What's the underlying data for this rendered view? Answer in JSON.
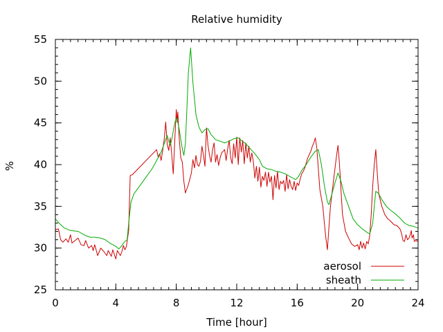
{
  "chart_data": {
    "type": "line",
    "title": "Relative humidity",
    "xlabel": "Time [hour]",
    "ylabel": "%",
    "xlim": [
      0,
      24
    ],
    "ylim": [
      25,
      55
    ],
    "xticks": [
      0,
      4,
      8,
      12,
      16,
      20,
      24
    ],
    "yticks": [
      25,
      30,
      35,
      40,
      45,
      50,
      55
    ],
    "grid": false,
    "legend_position": "bottom-right",
    "series": [
      {
        "name": "aerosol",
        "color": "#cc0000",
        "points": [
          [
            0,
            32.2
          ],
          [
            0.2,
            32.3
          ],
          [
            0.35,
            31.0
          ],
          [
            0.5,
            30.7
          ],
          [
            0.7,
            31.1
          ],
          [
            0.85,
            30.7
          ],
          [
            1.0,
            31.6
          ],
          [
            1.1,
            30.6
          ],
          [
            1.3,
            30.9
          ],
          [
            1.5,
            31.2
          ],
          [
            1.7,
            30.4
          ],
          [
            1.9,
            30.3
          ],
          [
            2.0,
            30.9
          ],
          [
            2.2,
            30.0
          ],
          [
            2.4,
            30.3
          ],
          [
            2.5,
            29.7
          ],
          [
            2.6,
            30.4
          ],
          [
            2.8,
            29.1
          ],
          [
            3.0,
            30.0
          ],
          [
            3.2,
            29.6
          ],
          [
            3.4,
            29.1
          ],
          [
            3.5,
            29.7
          ],
          [
            3.7,
            29.0
          ],
          [
            3.8,
            29.8
          ],
          [
            4.0,
            28.7
          ],
          [
            4.1,
            29.7
          ],
          [
            4.3,
            29.1
          ],
          [
            4.4,
            29.6
          ],
          [
            4.5,
            30.3
          ],
          [
            4.6,
            29.8
          ],
          [
            4.7,
            30.2
          ],
          [
            4.85,
            32.1
          ],
          [
            4.95,
            38.7
          ],
          [
            5.1,
            38.8
          ],
          [
            6.7,
            41.8
          ],
          [
            6.8,
            40.9
          ],
          [
            6.9,
            41.3
          ],
          [
            7.0,
            40.5
          ],
          [
            7.1,
            41.7
          ],
          [
            7.2,
            43.0
          ],
          [
            7.3,
            45.1
          ],
          [
            7.4,
            42.4
          ],
          [
            7.5,
            41.7
          ],
          [
            7.6,
            43.2
          ],
          [
            7.7,
            41.2
          ],
          [
            7.8,
            38.9
          ],
          [
            7.9,
            42.9
          ],
          [
            8.0,
            46.6
          ],
          [
            8.05,
            45.1
          ],
          [
            8.1,
            46.3
          ],
          [
            8.2,
            43.0
          ],
          [
            8.3,
            40.8
          ],
          [
            8.4,
            40.3
          ],
          [
            8.5,
            38.0
          ],
          [
            8.6,
            36.6
          ],
          [
            8.8,
            37.6
          ],
          [
            9.0,
            39.0
          ],
          [
            9.1,
            40.6
          ],
          [
            9.2,
            39.6
          ],
          [
            9.3,
            41.1
          ],
          [
            9.4,
            40.0
          ],
          [
            9.5,
            39.8
          ],
          [
            9.6,
            40.4
          ],
          [
            9.7,
            42.2
          ],
          [
            9.8,
            41.1
          ],
          [
            9.9,
            39.8
          ],
          [
            10.0,
            44.4
          ],
          [
            10.1,
            42.3
          ],
          [
            10.2,
            41.1
          ],
          [
            10.3,
            40.3
          ],
          [
            10.4,
            41.8
          ],
          [
            10.5,
            42.6
          ],
          [
            10.6,
            40.3
          ],
          [
            10.7,
            41.2
          ],
          [
            10.8,
            39.9
          ],
          [
            10.9,
            40.8
          ],
          [
            11.0,
            41.4
          ],
          [
            11.2,
            41.8
          ],
          [
            11.3,
            40.5
          ],
          [
            11.4,
            41.9
          ],
          [
            11.5,
            42.9
          ],
          [
            11.6,
            40.8
          ],
          [
            11.7,
            40.1
          ],
          [
            11.8,
            42.5
          ],
          [
            11.9,
            40.8
          ],
          [
            12.0,
            43.3
          ],
          [
            12.1,
            40.0
          ],
          [
            12.2,
            43.2
          ],
          [
            12.3,
            41.5
          ],
          [
            12.4,
            42.9
          ],
          [
            12.5,
            40.1
          ],
          [
            12.6,
            42.6
          ],
          [
            12.7,
            40.8
          ],
          [
            12.8,
            42.2
          ],
          [
            12.9,
            40.3
          ],
          [
            13.0,
            41.4
          ],
          [
            13.1,
            40.4
          ],
          [
            13.2,
            38.4
          ],
          [
            13.3,
            39.8
          ],
          [
            13.4,
            38.0
          ],
          [
            13.5,
            39.7
          ],
          [
            13.6,
            37.3
          ],
          [
            13.7,
            38.6
          ],
          [
            13.8,
            38.1
          ],
          [
            13.9,
            39.1
          ],
          [
            14.0,
            37.4
          ],
          [
            14.1,
            39.1
          ],
          [
            14.2,
            37.9
          ],
          [
            14.3,
            38.6
          ],
          [
            14.4,
            35.8
          ],
          [
            14.5,
            38.7
          ],
          [
            14.6,
            37.2
          ],
          [
            14.7,
            39.2
          ],
          [
            14.8,
            37.0
          ],
          [
            14.9,
            38.0
          ],
          [
            15.0,
            37.7
          ],
          [
            15.1,
            38.1
          ],
          [
            15.2,
            36.8
          ],
          [
            15.3,
            38.8
          ],
          [
            15.4,
            37.1
          ],
          [
            15.5,
            38.2
          ],
          [
            15.6,
            37.4
          ],
          [
            15.7,
            37.0
          ],
          [
            15.8,
            38.0
          ],
          [
            15.9,
            36.9
          ],
          [
            16.0,
            37.8
          ],
          [
            16.1,
            37.5
          ],
          [
            16.2,
            38.3
          ],
          [
            16.3,
            38.9
          ],
          [
            16.4,
            39.2
          ],
          [
            16.5,
            39.6
          ],
          [
            16.6,
            40.2
          ],
          [
            16.7,
            40.8
          ],
          [
            16.8,
            41.2
          ],
          [
            16.9,
            41.6
          ],
          [
            17.0,
            42.2
          ],
          [
            17.1,
            42.6
          ],
          [
            17.2,
            43.2
          ],
          [
            17.3,
            42.0
          ],
          [
            17.4,
            39.5
          ],
          [
            17.5,
            37.0
          ],
          [
            17.7,
            35.0
          ],
          [
            17.8,
            33.0
          ],
          [
            17.9,
            31.2
          ],
          [
            18.0,
            29.8
          ],
          [
            18.1,
            32.5
          ],
          [
            18.2,
            35.0
          ],
          [
            18.4,
            38.0
          ],
          [
            18.6,
            41.0
          ],
          [
            18.7,
            42.3
          ],
          [
            18.8,
            40.0
          ],
          [
            18.9,
            37.0
          ],
          [
            19.0,
            34.0
          ],
          [
            19.2,
            32.0
          ],
          [
            19.4,
            31.2
          ],
          [
            19.6,
            30.5
          ],
          [
            19.8,
            30.2
          ],
          [
            20.0,
            30.4
          ],
          [
            20.1,
            29.8
          ],
          [
            20.2,
            30.8
          ],
          [
            20.3,
            30.0
          ],
          [
            20.4,
            30.6
          ],
          [
            20.5,
            29.9
          ],
          [
            20.6,
            30.8
          ],
          [
            20.7,
            30.5
          ],
          [
            20.8,
            31.5
          ],
          [
            20.9,
            34.0
          ],
          [
            21.0,
            37.5
          ],
          [
            21.1,
            40.0
          ],
          [
            21.2,
            41.8
          ],
          [
            21.3,
            39.0
          ],
          [
            21.4,
            36.5
          ],
          [
            21.6,
            35.0
          ],
          [
            21.8,
            34.0
          ],
          [
            22.0,
            33.5
          ],
          [
            22.2,
            33.2
          ],
          [
            22.4,
            32.8
          ],
          [
            22.6,
            32.7
          ],
          [
            22.8,
            32.3
          ],
          [
            22.9,
            31.8
          ],
          [
            23.0,
            30.9
          ],
          [
            23.1,
            30.8
          ],
          [
            23.2,
            31.6
          ],
          [
            23.3,
            31.0
          ],
          [
            23.4,
            31.2
          ],
          [
            23.5,
            31.7
          ],
          [
            23.55,
            32.1
          ],
          [
            23.6,
            31.2
          ],
          [
            23.7,
            31.6
          ],
          [
            23.75,
            30.8
          ],
          [
            23.85,
            30.9
          ],
          [
            24.0,
            30.8
          ]
        ]
      },
      {
        "name": "sheath",
        "color": "#00aa00",
        "points": [
          [
            0,
            33.5
          ],
          [
            0.3,
            32.9
          ],
          [
            0.6,
            32.4
          ],
          [
            1.0,
            32.1
          ],
          [
            1.5,
            32.0
          ],
          [
            1.8,
            31.7
          ],
          [
            2.0,
            31.5
          ],
          [
            2.3,
            31.3
          ],
          [
            2.6,
            31.3
          ],
          [
            3.0,
            31.2
          ],
          [
            3.3,
            31.0
          ],
          [
            3.6,
            30.6
          ],
          [
            3.8,
            30.4
          ],
          [
            4.0,
            30.2
          ],
          [
            4.2,
            29.9
          ],
          [
            4.4,
            30.3
          ],
          [
            4.6,
            30.8
          ],
          [
            4.75,
            31.0
          ],
          [
            4.85,
            33.0
          ],
          [
            5.0,
            35.5
          ],
          [
            5.2,
            36.5
          ],
          [
            5.6,
            37.5
          ],
          [
            6.0,
            38.5
          ],
          [
            6.4,
            39.5
          ],
          [
            6.7,
            40.5
          ],
          [
            7.0,
            41.5
          ],
          [
            7.2,
            42.5
          ],
          [
            7.4,
            43.5
          ],
          [
            7.5,
            42.8
          ],
          [
            7.6,
            42.3
          ],
          [
            7.7,
            43.0
          ],
          [
            7.8,
            44.0
          ],
          [
            7.9,
            45.0
          ],
          [
            8.0,
            45.6
          ],
          [
            8.1,
            45.1
          ],
          [
            8.2,
            44.2
          ],
          [
            8.3,
            43.0
          ],
          [
            8.4,
            41.9
          ],
          [
            8.5,
            41.1
          ],
          [
            8.6,
            42.5
          ],
          [
            8.7,
            46.5
          ],
          [
            8.8,
            51.0
          ],
          [
            8.95,
            54.0
          ],
          [
            9.1,
            49.8
          ],
          [
            9.3,
            46.0
          ],
          [
            9.5,
            44.5
          ],
          [
            9.7,
            43.8
          ],
          [
            9.9,
            44.2
          ],
          [
            10.1,
            44.3
          ],
          [
            10.3,
            43.6
          ],
          [
            10.6,
            43.0
          ],
          [
            10.9,
            42.8
          ],
          [
            11.2,
            42.6
          ],
          [
            11.5,
            42.8
          ],
          [
            11.8,
            43.1
          ],
          [
            12.1,
            43.2
          ],
          [
            12.3,
            42.9
          ],
          [
            12.6,
            42.5
          ],
          [
            12.9,
            41.9
          ],
          [
            13.2,
            41.3
          ],
          [
            13.5,
            40.6
          ],
          [
            13.7,
            39.8
          ],
          [
            14.0,
            39.5
          ],
          [
            14.3,
            39.4
          ],
          [
            14.6,
            39.2
          ],
          [
            14.9,
            39.1
          ],
          [
            15.2,
            38.9
          ],
          [
            15.5,
            38.6
          ],
          [
            15.7,
            38.4
          ],
          [
            15.9,
            38.2
          ],
          [
            16.1,
            38.6
          ],
          [
            16.3,
            39.3
          ],
          [
            16.6,
            40.0
          ],
          [
            16.9,
            40.9
          ],
          [
            17.2,
            41.6
          ],
          [
            17.4,
            41.8
          ],
          [
            17.6,
            40.0
          ],
          [
            17.8,
            37.5
          ],
          [
            18.0,
            35.5
          ],
          [
            18.1,
            35.2
          ],
          [
            18.3,
            36.5
          ],
          [
            18.5,
            37.8
          ],
          [
            18.7,
            39.0
          ],
          [
            18.9,
            38.0
          ],
          [
            19.1,
            36.5
          ],
          [
            19.4,
            35.0
          ],
          [
            19.7,
            33.5
          ],
          [
            20.0,
            32.8
          ],
          [
            20.3,
            32.3
          ],
          [
            20.6,
            31.9
          ],
          [
            20.8,
            31.7
          ],
          [
            21.0,
            33.0
          ],
          [
            21.1,
            35.0
          ],
          [
            21.2,
            36.8
          ],
          [
            21.4,
            36.5
          ],
          [
            21.6,
            35.8
          ],
          [
            21.9,
            35.0
          ],
          [
            22.2,
            34.5
          ],
          [
            22.5,
            34.1
          ],
          [
            22.8,
            33.6
          ],
          [
            23.1,
            33.0
          ],
          [
            23.4,
            32.7
          ],
          [
            23.7,
            32.6
          ],
          [
            24.0,
            32.4
          ]
        ]
      }
    ]
  }
}
